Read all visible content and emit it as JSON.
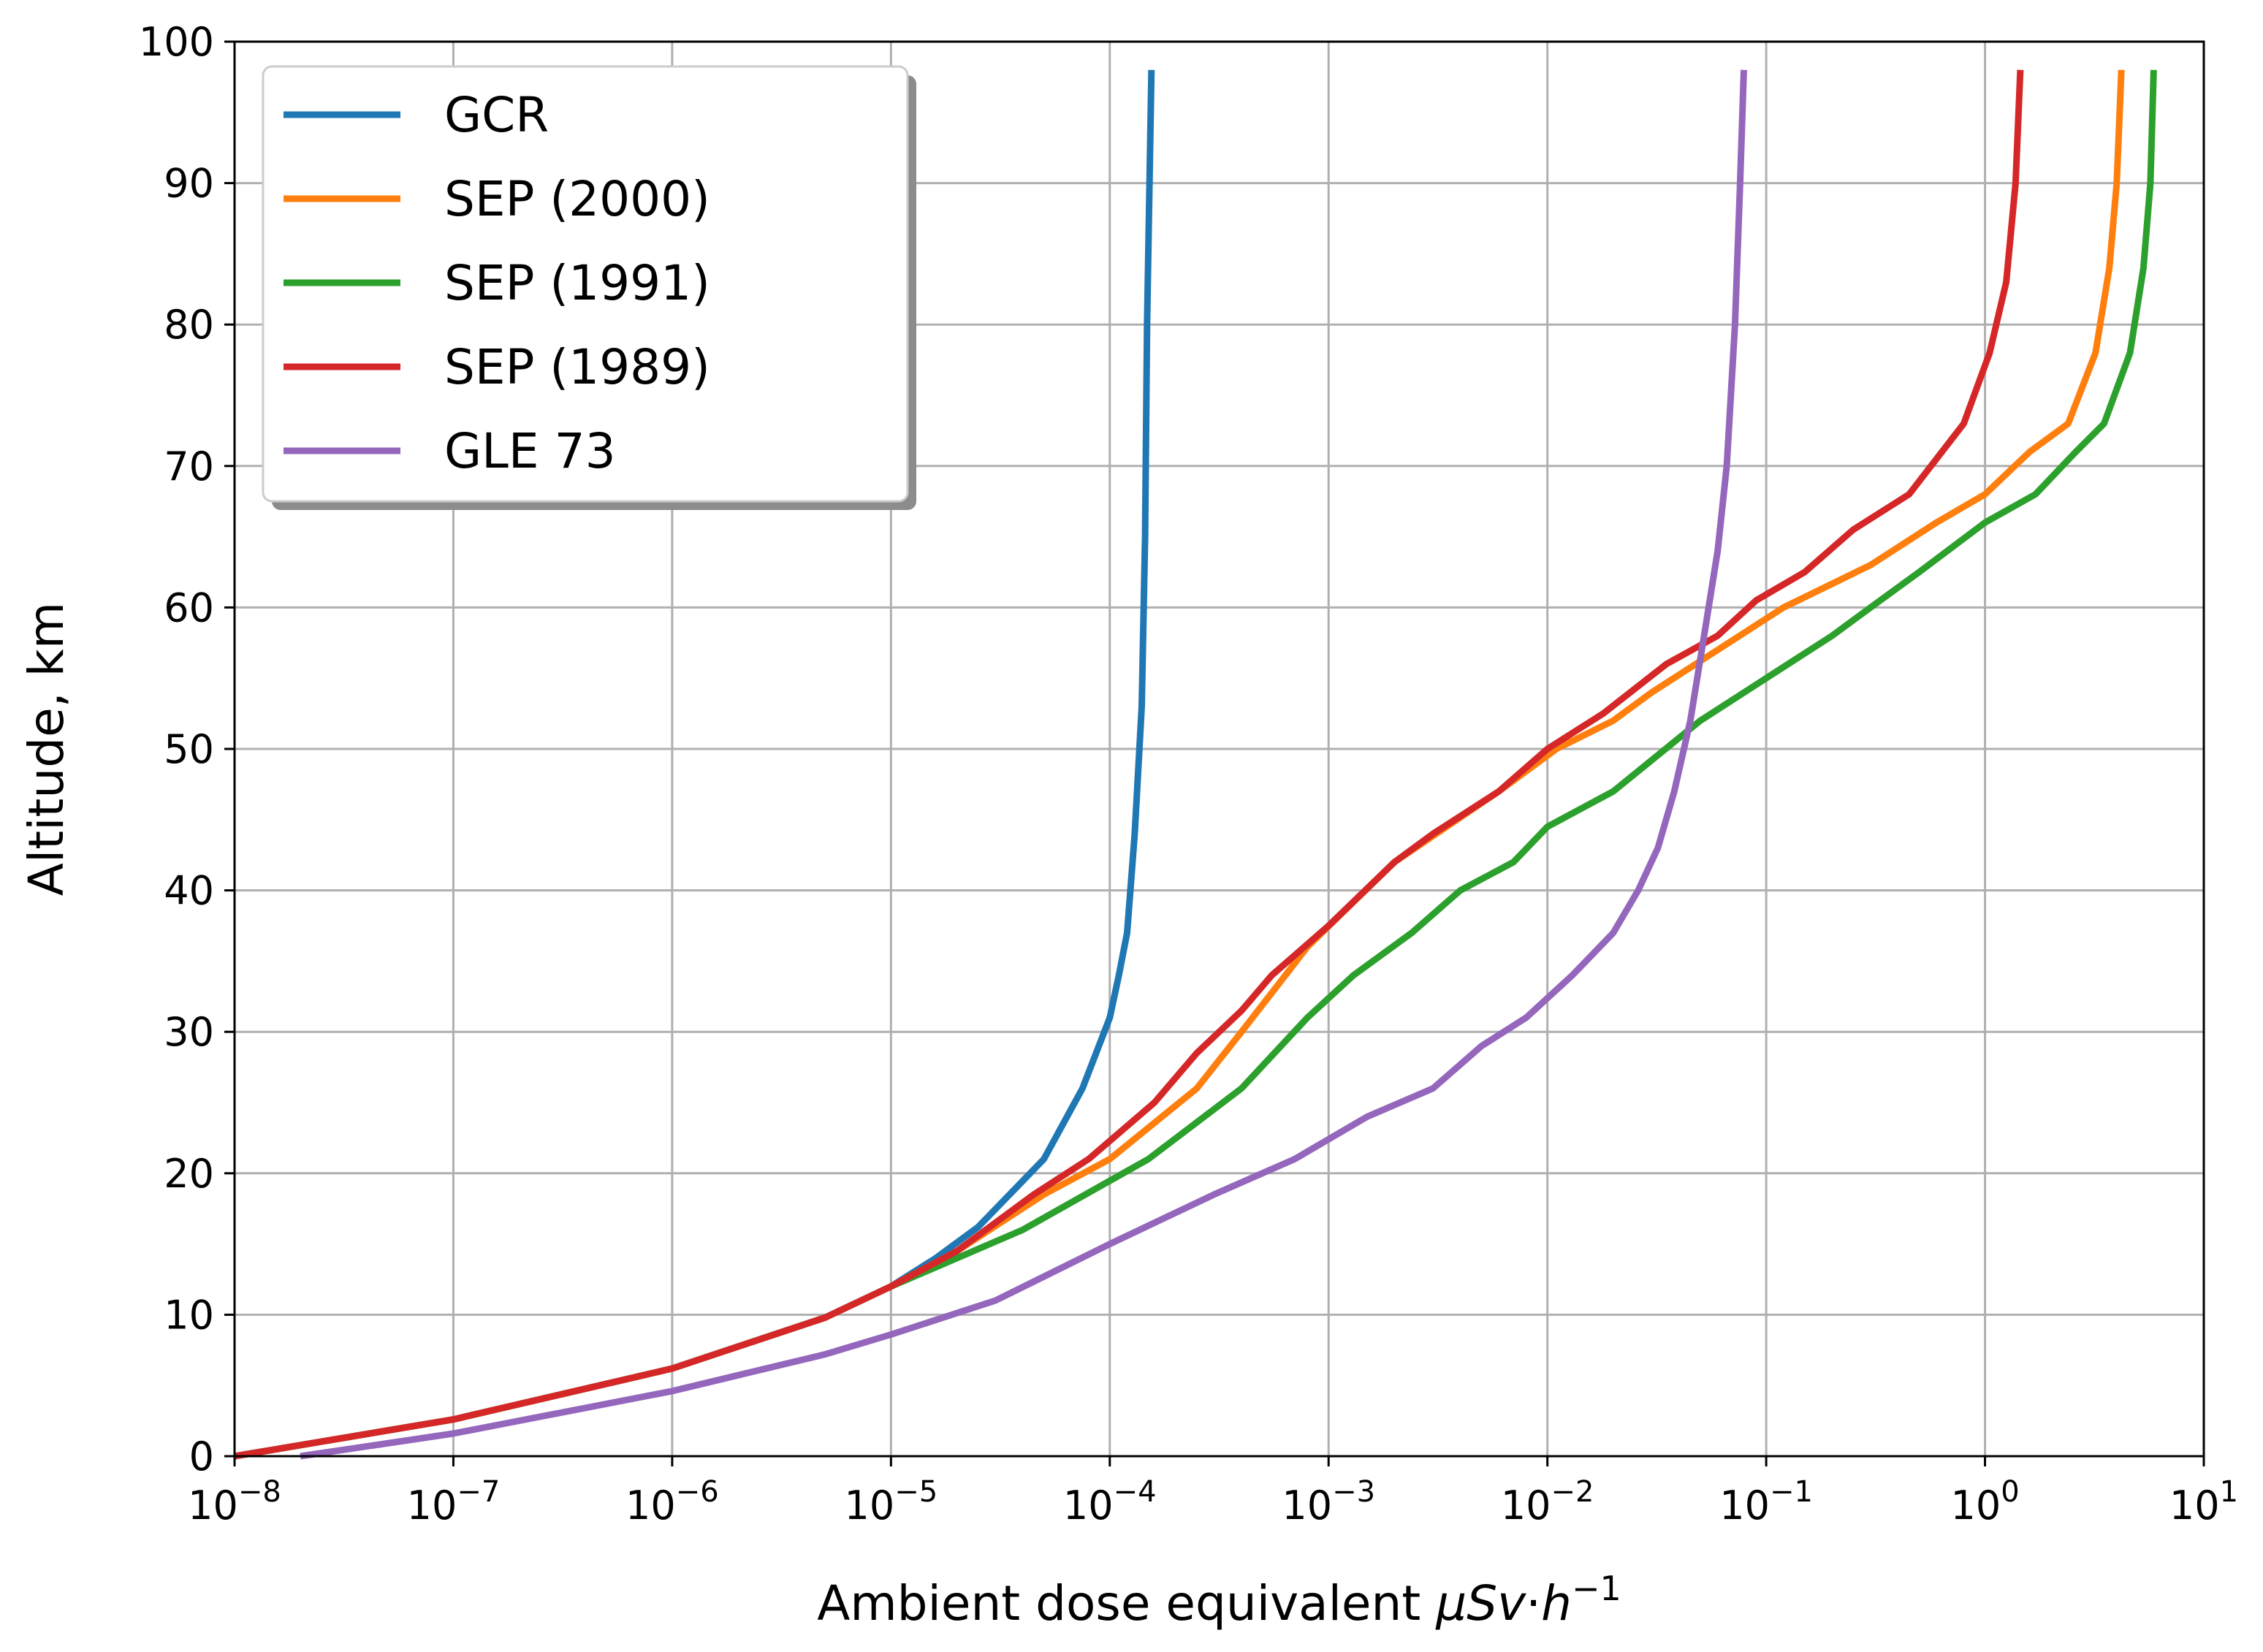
{
  "chart_data": {
    "type": "line",
    "title": "",
    "xlabel": "Ambient dose equivalent μSv·h⁻¹",
    "xlabel_parts": {
      "base": "Ambient dose equivalent ",
      "unit": "μSv",
      "dot": "·",
      "h": "h",
      "exp": "−1"
    },
    "ylabel": "Altitude, km",
    "xscale": "log",
    "xlim": [
      1e-08,
      10
    ],
    "ylim": [
      0,
      100
    ],
    "grid": true,
    "legend_position": "top-left",
    "x_ticks": [
      {
        "base": "10",
        "exp": "−8",
        "value": 1e-08
      },
      {
        "base": "10",
        "exp": "−7",
        "value": 1e-07
      },
      {
        "base": "10",
        "exp": "−6",
        "value": 1e-06
      },
      {
        "base": "10",
        "exp": "−5",
        "value": 1e-05
      },
      {
        "base": "10",
        "exp": "−4",
        "value": 0.0001
      },
      {
        "base": "10",
        "exp": "−3",
        "value": 0.001
      },
      {
        "base": "10",
        "exp": "−2",
        "value": 0.01
      },
      {
        "base": "10",
        "exp": "−1",
        "value": 0.1
      },
      {
        "base": "10",
        "exp": "0",
        "value": 1
      },
      {
        "base": "10",
        "exp": "1",
        "value": 10
      }
    ],
    "y_ticks": [
      {
        "label": "0",
        "value": 0
      },
      {
        "label": "10",
        "value": 10
      },
      {
        "label": "20",
        "value": 20
      },
      {
        "label": "30",
        "value": 30
      },
      {
        "label": "40",
        "value": 40
      },
      {
        "label": "50",
        "value": 50
      },
      {
        "label": "60",
        "value": 60
      },
      {
        "label": "70",
        "value": 70
      },
      {
        "label": "80",
        "value": 80
      },
      {
        "label": "90",
        "value": 90
      },
      {
        "label": "100",
        "value": 100
      }
    ],
    "series": [
      {
        "name": "GCR",
        "color": "#1f77b4",
        "points": [
          [
            1e-08,
            0
          ],
          [
            1e-07,
            2.6
          ],
          [
            1e-06,
            6.2
          ],
          [
            5e-06,
            9.8
          ],
          [
            1e-05,
            12
          ],
          [
            1.6e-05,
            14
          ],
          [
            2.5e-05,
            16.2
          ],
          [
            5e-05,
            21
          ],
          [
            7.5e-05,
            26
          ],
          [
            0.0001,
            31
          ],
          [
            0.00011,
            34
          ],
          [
            0.00012,
            37
          ],
          [
            0.00013,
            44
          ],
          [
            0.00014,
            53
          ],
          [
            0.000145,
            65
          ],
          [
            0.000148,
            80
          ],
          [
            0.000155,
            98
          ]
        ]
      },
      {
        "name": "SEP (2000)",
        "color": "#ff7f0e",
        "points": [
          [
            1e-08,
            0
          ],
          [
            1e-07,
            2.6
          ],
          [
            1e-06,
            6.2
          ],
          [
            5e-06,
            9.8
          ],
          [
            1e-05,
            12
          ],
          [
            2e-05,
            14.5
          ],
          [
            5e-05,
            18.5
          ],
          [
            0.0001,
            21
          ],
          [
            0.00025,
            26
          ],
          [
            0.0004,
            30
          ],
          [
            0.0008,
            36
          ],
          [
            0.002,
            42
          ],
          [
            0.006,
            47
          ],
          [
            0.011,
            50
          ],
          [
            0.02,
            52
          ],
          [
            0.03,
            54
          ],
          [
            0.06,
            57
          ],
          [
            0.12,
            60
          ],
          [
            0.3,
            63
          ],
          [
            0.6,
            66
          ],
          [
            1,
            68
          ],
          [
            1.6,
            71
          ],
          [
            2.4,
            73
          ],
          [
            3.2,
            78
          ],
          [
            3.7,
            84
          ],
          [
            4.0,
            90
          ],
          [
            4.2,
            98
          ]
        ]
      },
      {
        "name": "SEP (1991)",
        "color": "#2ca02c",
        "points": [
          [
            1e-08,
            0
          ],
          [
            1e-07,
            2.6
          ],
          [
            1e-06,
            6.2
          ],
          [
            5e-06,
            9.8
          ],
          [
            1e-05,
            12
          ],
          [
            2e-05,
            14
          ],
          [
            4e-05,
            16
          ],
          [
            0.00015,
            21
          ],
          [
            0.0004,
            26
          ],
          [
            0.0008,
            31
          ],
          [
            0.0013,
            34
          ],
          [
            0.0024,
            37
          ],
          [
            0.004,
            40
          ],
          [
            0.007,
            42
          ],
          [
            0.01,
            44.5
          ],
          [
            0.02,
            47
          ],
          [
            0.05,
            52
          ],
          [
            0.1,
            55
          ],
          [
            0.2,
            58
          ],
          [
            0.3,
            60
          ],
          [
            0.5,
            62.5
          ],
          [
            1,
            66
          ],
          [
            1.7,
            68
          ],
          [
            2.6,
            71
          ],
          [
            3.5,
            73
          ],
          [
            4.6,
            78
          ],
          [
            5.3,
            84
          ],
          [
            5.7,
            90
          ],
          [
            5.9,
            98
          ]
        ]
      },
      {
        "name": "SEP (1989)",
        "color": "#d62728",
        "points": [
          [
            1e-08,
            0
          ],
          [
            1e-07,
            2.6
          ],
          [
            1e-06,
            6.2
          ],
          [
            5e-06,
            9.8
          ],
          [
            1e-05,
            12
          ],
          [
            2e-05,
            14.5
          ],
          [
            4.5e-05,
            18.5
          ],
          [
            8e-05,
            21
          ],
          [
            0.00016,
            25
          ],
          [
            0.00025,
            28.5
          ],
          [
            0.0004,
            31.5
          ],
          [
            0.00055,
            34
          ],
          [
            0.001,
            37.5
          ],
          [
            0.002,
            42
          ],
          [
            0.003,
            44
          ],
          [
            0.006,
            47
          ],
          [
            0.01,
            50
          ],
          [
            0.018,
            52.5
          ],
          [
            0.035,
            56
          ],
          [
            0.06,
            58
          ],
          [
            0.09,
            60.5
          ],
          [
            0.15,
            62.5
          ],
          [
            0.25,
            65.5
          ],
          [
            0.45,
            68
          ],
          [
            0.8,
            73
          ],
          [
            1.05,
            78
          ],
          [
            1.25,
            83
          ],
          [
            1.38,
            90
          ],
          [
            1.45,
            98
          ]
        ]
      },
      {
        "name": "GLE 73",
        "color": "#9467bd",
        "points": [
          [
            2e-08,
            0
          ],
          [
            1e-07,
            1.6
          ],
          [
            1e-06,
            4.6
          ],
          [
            5e-06,
            7.2
          ],
          [
            1e-05,
            8.6
          ],
          [
            3e-05,
            11
          ],
          [
            0.0001,
            15
          ],
          [
            0.00016,
            16.5
          ],
          [
            0.0003,
            18.5
          ],
          [
            0.0007,
            21
          ],
          [
            0.0015,
            24
          ],
          [
            0.003,
            26
          ],
          [
            0.005,
            29
          ],
          [
            0.008,
            31
          ],
          [
            0.013,
            34
          ],
          [
            0.02,
            37
          ],
          [
            0.026,
            40
          ],
          [
            0.032,
            43
          ],
          [
            0.038,
            47
          ],
          [
            0.045,
            52
          ],
          [
            0.052,
            58
          ],
          [
            0.06,
            64
          ],
          [
            0.066,
            70
          ],
          [
            0.072,
            80
          ],
          [
            0.076,
            90
          ],
          [
            0.079,
            98
          ]
        ]
      }
    ]
  }
}
